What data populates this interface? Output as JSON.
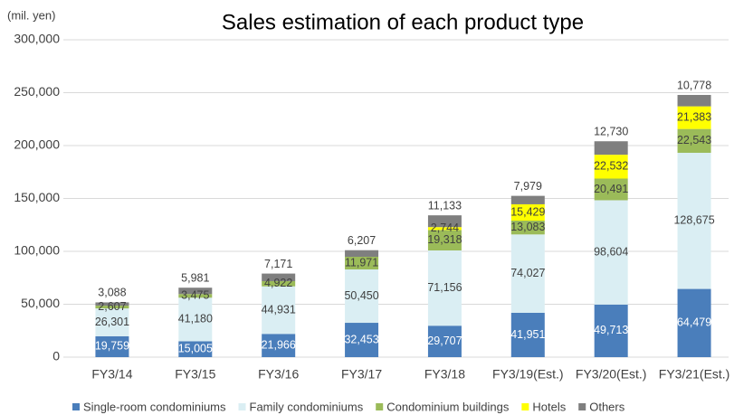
{
  "chart_data": {
    "type": "stacked_bar",
    "title": "Sales estimation of each product type",
    "y_unit_label": "(mil. yen)",
    "categories": [
      "FY3/14",
      "FY3/15",
      "FY3/16",
      "FY3/17",
      "FY3/18",
      "FY3/19(Est.)",
      "FY3/20(Est.)",
      "FY3/21(Est.)"
    ],
    "ylim": [
      0,
      300000
    ],
    "yticks": [
      0,
      {
        "value": 50000,
        "label": "50,000"
      },
      {
        "value": 100000,
        "label": "100,000"
      },
      {
        "value": 150000,
        "label": "150,000"
      },
      {
        "value": 200000,
        "label": "200,000"
      },
      {
        "value": 250000,
        "label": "250,000"
      },
      {
        "value": 300000,
        "label": "300,000"
      }
    ],
    "grid": true,
    "legend": "bottom",
    "series": [
      {
        "name": "Single-room condominiums",
        "color": "#4a7ebb",
        "values": [
          19759,
          15005,
          21966,
          32453,
          29707,
          41951,
          49713,
          64479
        ],
        "value_labels": [
          "19,759",
          "15,005",
          "21,966",
          "32,453",
          "29,707",
          "41,951",
          "49,713",
          "64,479"
        ]
      },
      {
        "name": "Family condominiums",
        "color": "#daeef3",
        "values": [
          26301,
          41180,
          44931,
          50450,
          71156,
          74027,
          98604,
          128675
        ],
        "value_labels": [
          "26,301",
          "41,180",
          "44,931",
          "50,450",
          "71,156",
          "74,027",
          "98,604",
          "128,675"
        ]
      },
      {
        "name": "Condominium buildings",
        "color": "#9bbb59",
        "values": [
          2607,
          3475,
          4922,
          11971,
          19318,
          13083,
          20491,
          22543
        ],
        "value_labels": [
          "2,607",
          "3,475",
          "4,922",
          "11,971",
          "19,318",
          "13,083",
          "20,491",
          "22,543"
        ]
      },
      {
        "name": "Hotels",
        "color": "#ffff00",
        "values": [
          null,
          null,
          null,
          null,
          2744,
          15429,
          22532,
          21383
        ],
        "value_labels": [
          null,
          null,
          null,
          null,
          "2,744",
          "15,429",
          "22,532",
          "21,383"
        ]
      },
      {
        "name": "Others",
        "color": "#7f7f7f",
        "values": [
          3088,
          5981,
          7171,
          6207,
          11133,
          7979,
          12730,
          10778
        ],
        "value_labels": [
          "3,088",
          "5,981",
          "7,171",
          "6,207",
          "11,133",
          "7,979",
          "12,730",
          "10,778"
        ]
      }
    ]
  }
}
